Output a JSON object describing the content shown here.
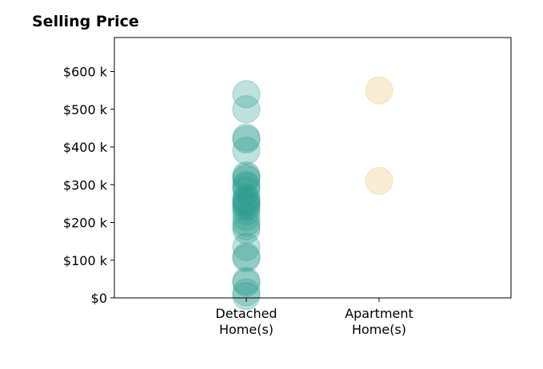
{
  "chart_data": {
    "type": "scatter",
    "title": "Selling Price",
    "xlabel": "",
    "ylabel": "",
    "ylim": [
      0,
      690000
    ],
    "y_tick_values": [
      0,
      100000,
      200000,
      300000,
      400000,
      500000,
      600000
    ],
    "y_tick_labels": [
      "$0",
      "$100 k",
      "$200 k",
      "$300 k",
      "$400 k",
      "$500 k",
      "$600 k"
    ],
    "categories": [
      {
        "label_lines": [
          "Detached",
          "Home(s)"
        ]
      },
      {
        "label_lines": [
          "Apartment",
          "Home(s)"
        ]
      }
    ],
    "grid": false,
    "legend": "none",
    "series": [
      {
        "category_index": 0,
        "color": "#2a9d8f",
        "alpha": 0.3,
        "values": [
          5000,
          15000,
          40000,
          45000,
          105000,
          110000,
          135000,
          180000,
          190000,
          200000,
          215000,
          230000,
          240000,
          245000,
          250000,
          255000,
          260000,
          265000,
          285000,
          295000,
          300000,
          315000,
          320000,
          325000,
          390000,
          420000,
          425000,
          500000,
          540000
        ]
      },
      {
        "category_index": 1,
        "color": "#e9c46a",
        "alpha": 0.3,
        "values": [
          310000,
          550000
        ]
      }
    ]
  }
}
